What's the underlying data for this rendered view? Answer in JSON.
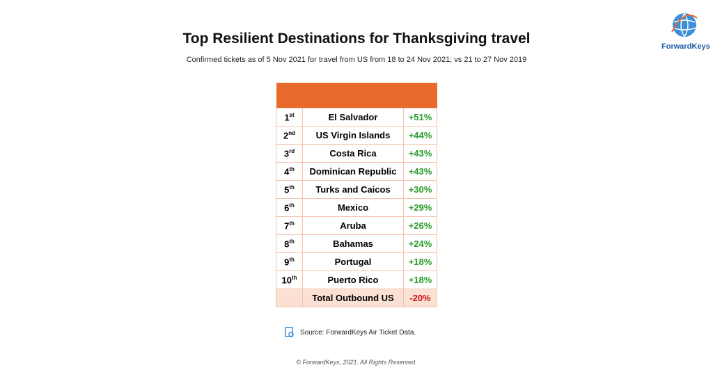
{
  "header": {
    "title": "Top Resilient Destinations for Thanksgiving travel",
    "subtitle": "Confirmed tickets as of 5 Nov 2021 for travel from US from 18 to 24 Nov 2021; vs 21 to 27 Nov 2019"
  },
  "logo": {
    "text": "ForwardKeys"
  },
  "table": {
    "rows": [
      {
        "rank": "1",
        "suffix": "st",
        "destination": "El Salvador",
        "change": "+51%"
      },
      {
        "rank": "2",
        "suffix": "nd",
        "destination": "US Virgin Islands",
        "change": "+44%"
      },
      {
        "rank": "3",
        "suffix": "rd",
        "destination": "Costa Rica",
        "change": "+43%"
      },
      {
        "rank": "4",
        "suffix": "th",
        "destination": "Dominican Republic",
        "change": "+43%"
      },
      {
        "rank": "5",
        "suffix": "th",
        "destination": "Turks and Caicos",
        "change": "+30%"
      },
      {
        "rank": "6",
        "suffix": "th",
        "destination": "Mexico",
        "change": "+29%"
      },
      {
        "rank": "7",
        "suffix": "th",
        "destination": "Aruba",
        "change": "+26%"
      },
      {
        "rank": "8",
        "suffix": "th",
        "destination": "Bahamas",
        "change": "+24%"
      },
      {
        "rank": "9",
        "suffix": "th",
        "destination": "Portugal",
        "change": "+18%"
      },
      {
        "rank": "10",
        "suffix": "th",
        "destination": "Puerto Rico",
        "change": "+18%"
      }
    ],
    "total": {
      "destination": "Total Outbound US",
      "change": "-20%"
    }
  },
  "footer": {
    "source": "Source: ForwardKeys Air Ticket Data.",
    "copyright": "© ForwardKeys, 2021. All Rights Reserved."
  }
}
